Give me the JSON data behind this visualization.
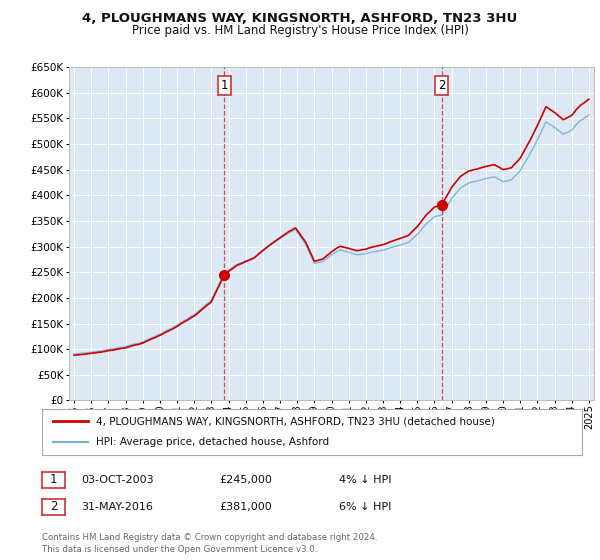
{
  "title": "4, PLOUGHMANS WAY, KINGSNORTH, ASHFORD, TN23 3HU",
  "subtitle": "Price paid vs. HM Land Registry's House Price Index (HPI)",
  "legend_line1": "4, PLOUGHMANS WAY, KINGSNORTH, ASHFORD, TN23 3HU (detached house)",
  "legend_line2": "HPI: Average price, detached house, Ashford",
  "annotation1_label": "1",
  "annotation1_date": "03-OCT-2003",
  "annotation1_price": "£245,000",
  "annotation1_hpi": "4% ↓ HPI",
  "annotation1_year": 2003.75,
  "annotation1_value": 245000,
  "annotation2_label": "2",
  "annotation2_date": "31-MAY-2016",
  "annotation2_price": "£381,000",
  "annotation2_hpi": "6% ↓ HPI",
  "annotation2_year": 2016.42,
  "annotation2_value": 381000,
  "background_color": "#ffffff",
  "plot_bg_color": "#dce9f5",
  "grid_color": "#ffffff",
  "line1_color": "#cc0000",
  "line2_color": "#7bafd4",
  "vline_color": "#cc3333",
  "ylim": [
    0,
    650000
  ],
  "yticks": [
    0,
    50000,
    100000,
    150000,
    200000,
    250000,
    300000,
    350000,
    400000,
    450000,
    500000,
    550000,
    600000,
    650000
  ],
  "copyright": "Contains HM Land Registry data © Crown copyright and database right 2024.\nThis data is licensed under the Open Government Licence v3.0.",
  "footnote_color": "#666666"
}
